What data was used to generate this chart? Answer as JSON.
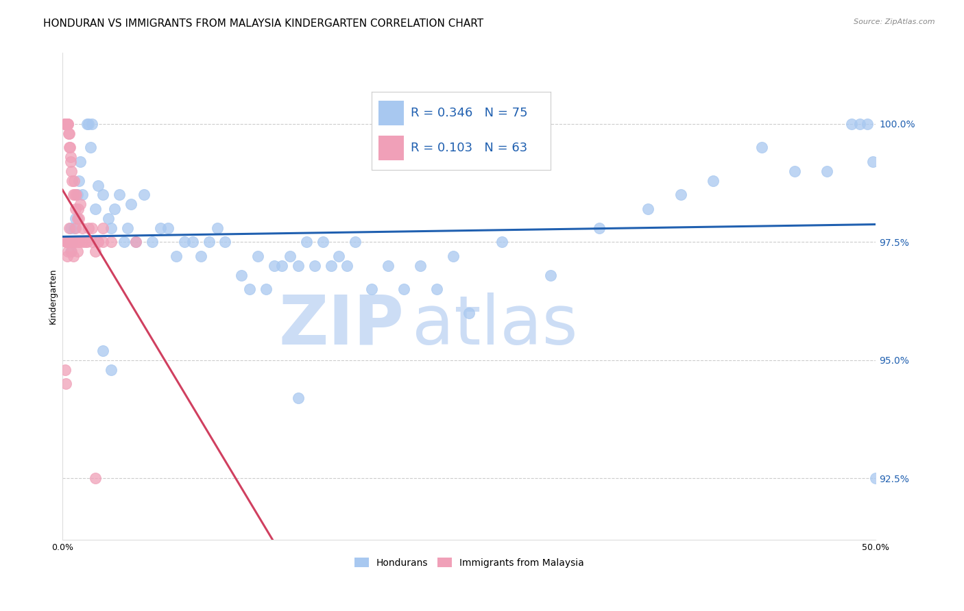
{
  "title": "HONDURAN VS IMMIGRANTS FROM MALAYSIA KINDERGARTEN CORRELATION CHART",
  "source": "Source: ZipAtlas.com",
  "ylabel": "Kindergarten",
  "xlim": [
    0.0,
    50.0
  ],
  "ylim": [
    91.2,
    101.5
  ],
  "yticks": [
    92.5,
    95.0,
    97.5,
    100.0
  ],
  "ytick_labels": [
    "92.5%",
    "95.0%",
    "97.5%",
    "100.0%"
  ],
  "xticks": [
    0.0,
    10.0,
    20.0,
    30.0,
    40.0,
    50.0
  ],
  "xtick_labels": [
    "0.0%",
    "",
    "",
    "",
    "",
    "50.0%"
  ],
  "blue_color": "#A8C8F0",
  "pink_color": "#F0A0B8",
  "blue_line_color": "#2060B0",
  "pink_line_color": "#D04060",
  "legend_blue_R": "0.346",
  "legend_blue_N": "75",
  "legend_pink_R": "0.103",
  "legend_pink_N": "63",
  "legend_label_blue": "Hondurans",
  "legend_label_pink": "Immigrants from Malaysia",
  "blue_x": [
    0.4,
    0.5,
    0.5,
    0.6,
    0.7,
    0.8,
    0.9,
    1.0,
    1.1,
    1.2,
    1.5,
    1.6,
    1.7,
    1.8,
    2.0,
    2.2,
    2.5,
    2.8,
    3.0,
    3.2,
    3.5,
    3.8,
    4.0,
    4.2,
    4.5,
    5.0,
    5.5,
    6.0,
    6.5,
    7.0,
    7.5,
    8.0,
    8.5,
    9.0,
    9.5,
    10.0,
    11.0,
    11.5,
    12.0,
    12.5,
    13.0,
    13.5,
    14.0,
    14.5,
    15.0,
    15.5,
    16.0,
    16.5,
    17.0,
    17.5,
    18.0,
    19.0,
    20.0,
    21.0,
    22.0,
    23.0,
    24.0,
    25.0,
    27.0,
    30.0,
    33.0,
    36.0,
    38.0,
    40.0,
    43.0,
    45.0,
    47.0,
    48.5,
    49.0,
    49.5,
    2.5,
    3.0,
    14.5,
    49.8,
    50.0
  ],
  "blue_y": [
    97.5,
    97.3,
    97.8,
    97.5,
    97.8,
    98.0,
    98.5,
    98.8,
    99.2,
    98.5,
    100.0,
    100.0,
    99.5,
    100.0,
    98.2,
    98.7,
    98.5,
    98.0,
    97.8,
    98.2,
    98.5,
    97.5,
    97.8,
    98.3,
    97.5,
    98.5,
    97.5,
    97.8,
    97.8,
    97.2,
    97.5,
    97.5,
    97.2,
    97.5,
    97.8,
    97.5,
    96.8,
    96.5,
    97.2,
    96.5,
    97.0,
    97.0,
    97.2,
    97.0,
    97.5,
    97.0,
    97.5,
    97.0,
    97.2,
    97.0,
    97.5,
    96.5,
    97.0,
    96.5,
    97.0,
    96.5,
    97.2,
    96.0,
    97.5,
    96.8,
    97.8,
    98.2,
    98.5,
    98.8,
    99.5,
    99.0,
    99.0,
    100.0,
    100.0,
    100.0,
    95.2,
    94.8,
    94.2,
    99.2,
    92.5
  ],
  "pink_x": [
    0.1,
    0.15,
    0.18,
    0.2,
    0.22,
    0.25,
    0.28,
    0.3,
    0.32,
    0.35,
    0.38,
    0.4,
    0.42,
    0.45,
    0.48,
    0.5,
    0.55,
    0.6,
    0.65,
    0.7,
    0.75,
    0.8,
    0.85,
    0.9,
    0.95,
    1.0,
    1.1,
    1.2,
    1.4,
    1.6,
    1.8,
    2.0,
    2.2,
    2.5,
    3.0,
    0.3,
    0.35,
    0.4,
    0.45,
    0.5,
    0.55,
    0.6,
    0.65,
    0.7,
    0.75,
    0.8,
    0.85,
    0.9,
    1.0,
    1.2,
    1.5,
    1.8,
    2.2,
    0.2,
    0.25,
    0.3,
    0.35,
    1.0,
    2.5,
    4.5,
    0.15,
    0.2,
    2.0
  ],
  "pink_y": [
    100.0,
    100.0,
    100.0,
    100.0,
    100.0,
    100.0,
    100.0,
    100.0,
    100.0,
    100.0,
    99.8,
    99.5,
    99.8,
    99.5,
    99.3,
    99.2,
    99.0,
    98.8,
    98.5,
    98.8,
    98.5,
    98.2,
    98.5,
    98.0,
    98.2,
    98.0,
    98.3,
    97.8,
    97.5,
    97.8,
    97.5,
    97.3,
    97.5,
    97.8,
    97.5,
    97.5,
    97.5,
    97.8,
    97.5,
    97.5,
    97.3,
    97.5,
    97.2,
    97.5,
    97.5,
    97.8,
    97.5,
    97.3,
    97.5,
    97.5,
    97.5,
    97.8,
    97.5,
    97.5,
    97.5,
    97.2,
    97.3,
    97.5,
    97.5,
    97.5,
    94.8,
    94.5,
    92.5
  ],
  "background_color": "#FFFFFF",
  "grid_color": "#CCCCCC",
  "title_fontsize": 11,
  "axis_fontsize": 9,
  "legend_fontsize": 13
}
